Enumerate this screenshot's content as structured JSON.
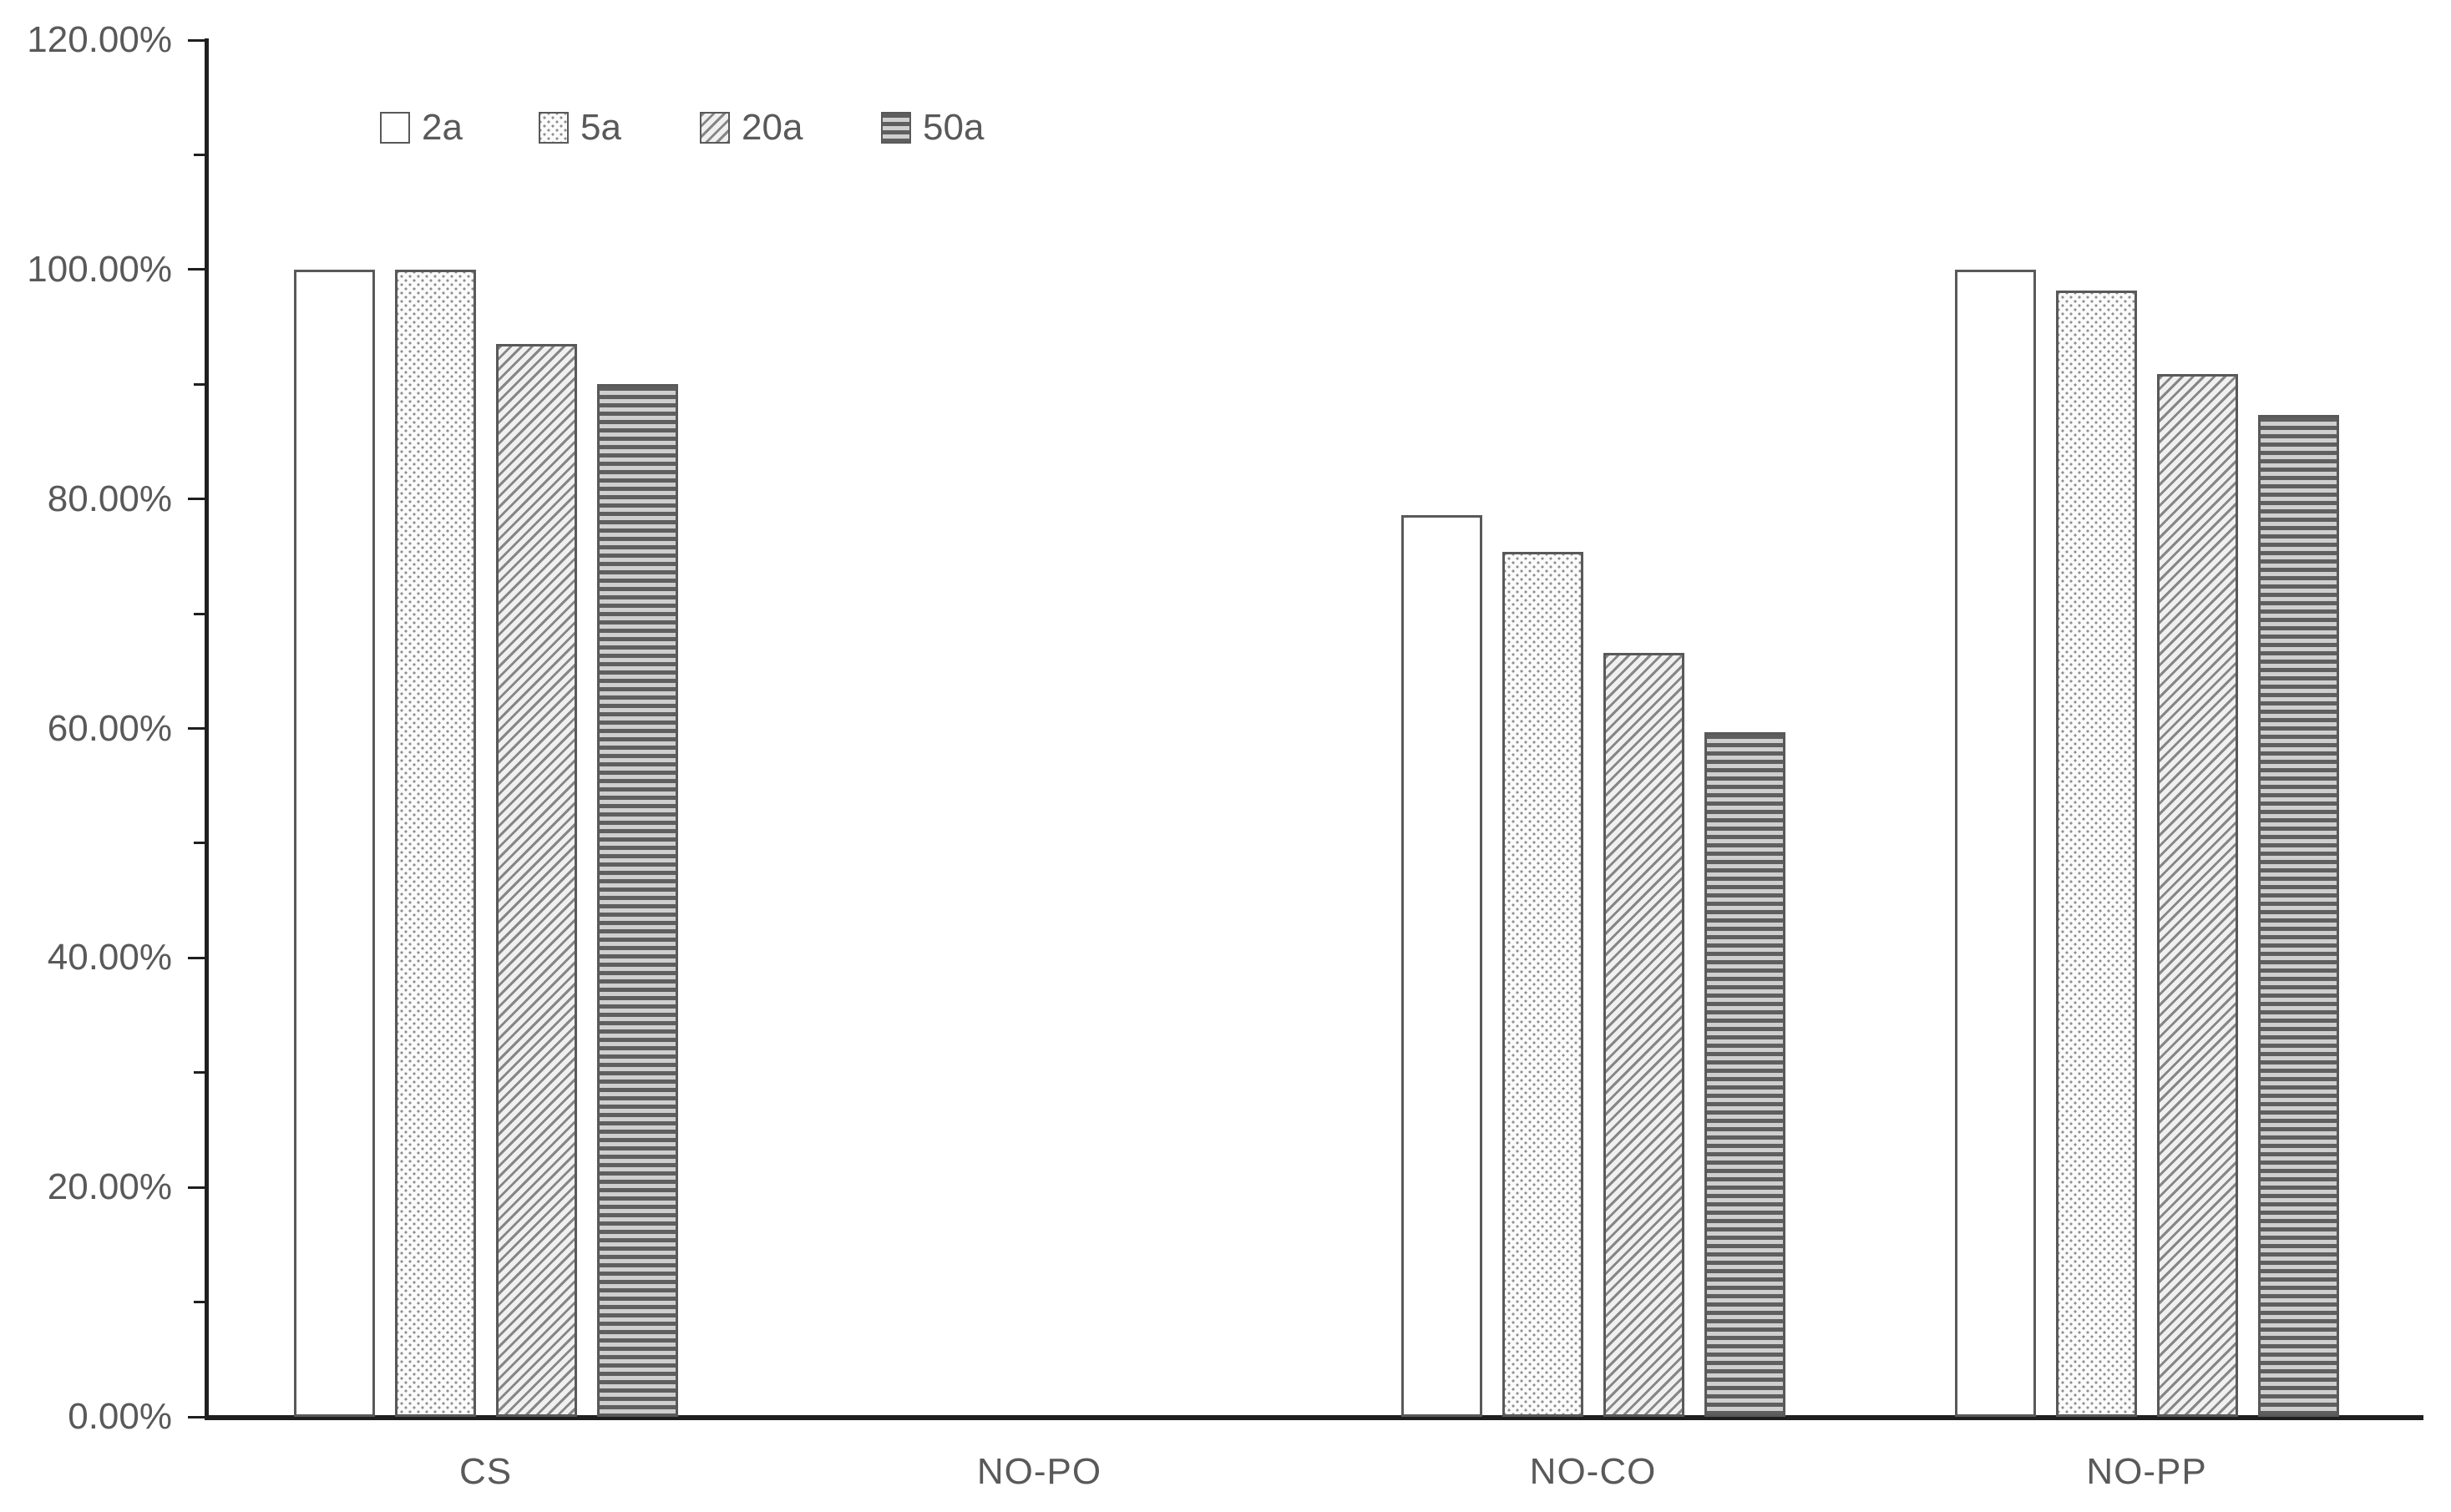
{
  "chart_data": {
    "type": "bar",
    "title": "",
    "categories": [
      "CS",
      "NO-PO",
      "NO-CO",
      "NO-PP"
    ],
    "series": [
      {
        "name": "2a",
        "pattern": "plain",
        "values": [
          100.0,
          0.0,
          78.6,
          100.0
        ]
      },
      {
        "name": "5a",
        "pattern": "dots",
        "values": [
          100.0,
          0.0,
          75.4,
          98.2
        ]
      },
      {
        "name": "20a",
        "pattern": "diagonal",
        "values": [
          93.5,
          0.0,
          66.6,
          90.9
        ]
      },
      {
        "name": "50a",
        "pattern": "hlines",
        "values": [
          90.0,
          0.0,
          59.7,
          87.3
        ]
      }
    ],
    "xlabel": "",
    "ylabel": "",
    "ylim": [
      0,
      120
    ],
    "ytick_labels": [
      "0.00%",
      "20.00%",
      "40.00%",
      "60.00%",
      "80.00%",
      "100.00%",
      "120.00%"
    ],
    "ytick_label_step": 20,
    "ytick_minor_step": 10,
    "grid": false,
    "legend_position": "top-left"
  },
  "colors": {
    "background": "#ffffff",
    "axis": "#1f1f1f",
    "text": "#595959",
    "bar_border": "#595959"
  }
}
